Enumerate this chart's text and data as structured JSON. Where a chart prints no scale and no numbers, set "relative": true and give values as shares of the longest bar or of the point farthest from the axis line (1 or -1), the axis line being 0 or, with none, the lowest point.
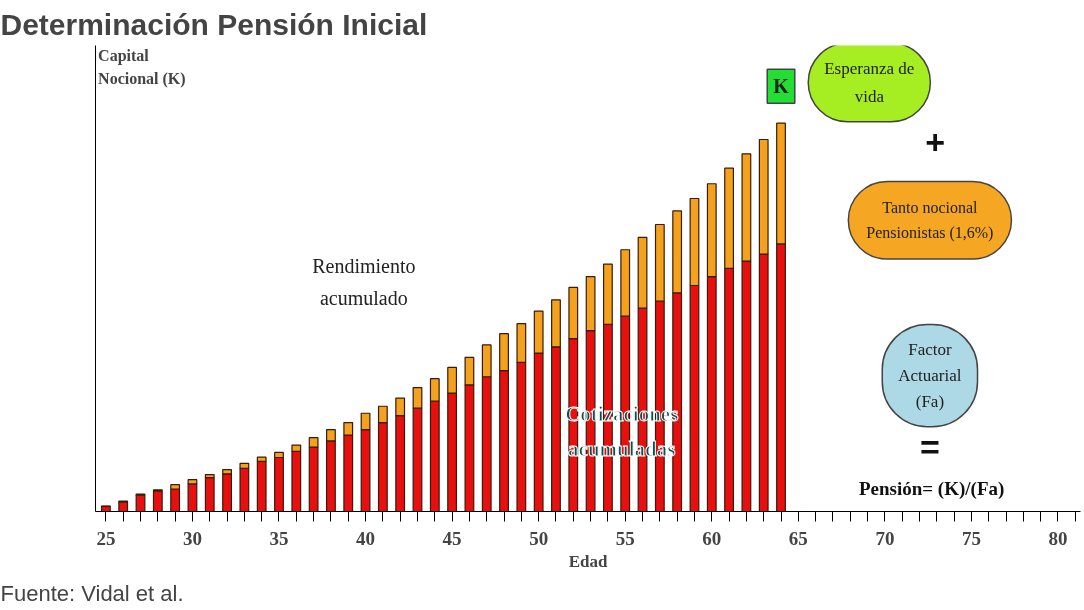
{
  "chart_data": {
    "type": "bar",
    "stacked": true,
    "relative": true,
    "title": "Determinación Pensión Inicial",
    "xlabel": "Edad",
    "ylabel": "Capital Nocional (K)",
    "x": [
      25,
      26,
      27,
      28,
      29,
      30,
      31,
      32,
      33,
      34,
      35,
      36,
      37,
      38,
      39,
      40,
      41,
      42,
      43,
      44,
      45,
      46,
      47,
      48,
      49,
      50,
      51,
      52,
      53,
      54,
      55,
      56,
      57,
      58,
      59,
      60,
      61,
      62,
      63,
      64
    ],
    "series": [
      {
        "color": "#e8100f",
        "values": [
          0.013,
          0.024,
          0.042,
          0.053,
          0.058,
          0.071,
          0.087,
          0.097,
          0.111,
          0.129,
          0.139,
          0.155,
          0.166,
          0.182,
          0.197,
          0.211,
          0.229,
          0.247,
          0.266,
          0.284,
          0.305,
          0.326,
          0.347,
          0.363,
          0.384,
          0.408,
          0.424,
          0.445,
          0.466,
          0.482,
          0.503,
          0.524,
          0.542,
          0.563,
          0.582,
          0.605,
          0.626,
          0.645,
          0.663,
          0.689
        ]
      },
      {
        "color": "#f4a21e",
        "values": [
          0.001,
          0.003,
          0.003,
          0.003,
          0.011,
          0.011,
          0.008,
          0.011,
          0.013,
          0.011,
          0.013,
          0.016,
          0.024,
          0.029,
          0.032,
          0.042,
          0.042,
          0.045,
          0.053,
          0.058,
          0.066,
          0.071,
          0.082,
          0.095,
          0.1,
          0.108,
          0.121,
          0.132,
          0.139,
          0.155,
          0.171,
          0.182,
          0.197,
          0.211,
          0.224,
          0.239,
          0.258,
          0.276,
          0.295,
          0.311
        ]
      }
    ],
    "xlim": [
      24.4,
      81.3
    ],
    "xticks": [
      25,
      {
        "value": 26,
        "label": null
      },
      {
        "value": 27,
        "label": null
      },
      {
        "value": 28,
        "label": null
      },
      {
        "value": 29,
        "label": null
      },
      30,
      {
        "value": 31,
        "label": null
      },
      {
        "value": 32,
        "label": null
      },
      {
        "value": 33,
        "label": null
      },
      {
        "value": 34,
        "label": null
      },
      35,
      {
        "value": 36,
        "label": null
      },
      {
        "value": 37,
        "label": null
      },
      {
        "value": 38,
        "label": null
      },
      {
        "value": 39,
        "label": null
      },
      40,
      {
        "value": 41,
        "label": null
      },
      {
        "value": 42,
        "label": null
      },
      {
        "value": 43,
        "label": null
      },
      {
        "value": 44,
        "label": null
      },
      45,
      {
        "value": 46,
        "label": null
      },
      {
        "value": 47,
        "label": null
      },
      {
        "value": 48,
        "label": null
      },
      {
        "value": 49,
        "label": null
      },
      50,
      {
        "value": 51,
        "label": null
      },
      {
        "value": 52,
        "label": null
      },
      {
        "value": 53,
        "label": null
      },
      {
        "value": 54,
        "label": null
      },
      55,
      {
        "value": 56,
        "label": null
      },
      {
        "value": 57,
        "label": null
      },
      {
        "value": 58,
        "label": null
      },
      {
        "value": 59,
        "label": null
      },
      60,
      {
        "value": 61,
        "label": null
      },
      {
        "value": 62,
        "label": null
      },
      {
        "value": 63,
        "label": null
      },
      {
        "value": 64,
        "label": null
      },
      65,
      {
        "value": 66,
        "label": null
      },
      {
        "value": 67,
        "label": null
      },
      {
        "value": 68,
        "label": null
      },
      {
        "value": 69,
        "label": null
      },
      70,
      {
        "value": 71,
        "label": null
      },
      {
        "value": 72,
        "label": null
      },
      {
        "value": 73,
        "label": null
      },
      {
        "value": 74,
        "label": null
      },
      75,
      {
        "value": 76,
        "label": null
      },
      {
        "value": 77,
        "label": null
      },
      {
        "value": 78,
        "label": null
      },
      {
        "value": 79,
        "label": null
      },
      80,
      {
        "value": 81,
        "label": null
      }
    ],
    "annotations": [
      "Rendimiento acumulado",
      "Cotizaciones acumuladas",
      "K",
      "Esperanza de vida",
      "+",
      "Tanto nocional Pensionistas (1,6%)",
      "Factor Actuarial (Fa)",
      "=",
      "Pensión= (K)/(Fa)",
      "Fuente: Vidal et al."
    ],
    "grid": false
  }
}
